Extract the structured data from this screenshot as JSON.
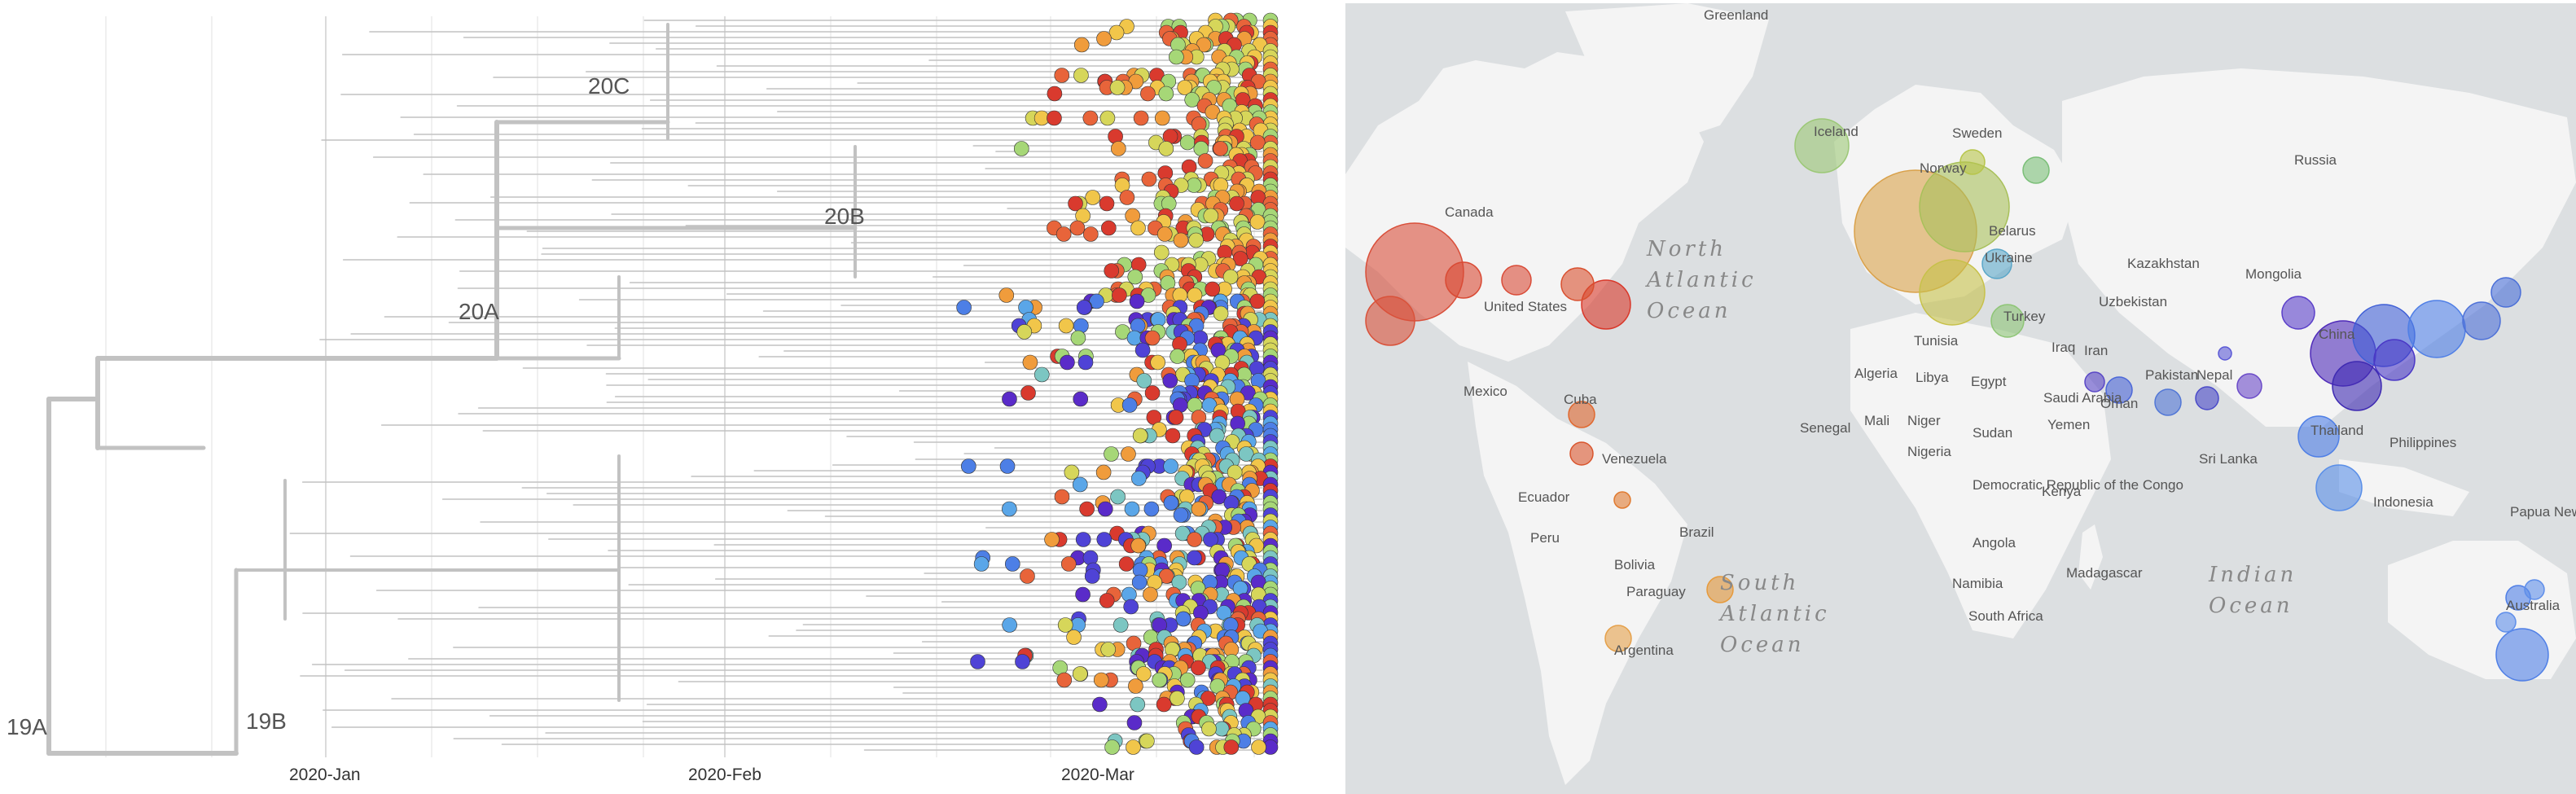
{
  "tree": {
    "clades": [
      "19A",
      "19B",
      "20A",
      "20B",
      "20C"
    ],
    "time_axis": [
      "2020-Jan",
      "2020-Feb",
      "2020-Mar"
    ]
  },
  "map": {
    "places": [
      "Greenland",
      "Iceland",
      "Sweden",
      "Russia",
      "Canada",
      "Norway",
      "Belarus",
      "Ukraine",
      "Kazakhstan",
      "Mongolia",
      "United States",
      "Uzbekistan",
      "Turkey",
      "China",
      "Tunisia",
      "Iraq",
      "Iran",
      "Algeria",
      "Libya",
      "Egypt",
      "Pakistan",
      "Nepal",
      "Mexico",
      "Cuba",
      "Saudi Arabia",
      "Oman",
      "Senegal",
      "Mali",
      "Niger",
      "Yemen",
      "Sudan",
      "Nigeria",
      "Venezuela",
      "Thailand",
      "Philippines",
      "Ecuador",
      "Sri Lanka",
      "Democratic Republic of the Congo",
      "Kenya",
      "Peru",
      "Indonesia",
      "Brazil",
      "Papua New Guinea",
      "Bolivia",
      "Angola",
      "Paraguay",
      "Namibia",
      "Madagascar",
      "Australia",
      "South Africa",
      "Argentina"
    ],
    "oceans": [
      "North Atlantic Ocean",
      "South Atlantic Ocean",
      "Indian Ocean"
    ]
  },
  "colors": {
    "branch": "#c2c2c2",
    "background_map": "#dcdfe1",
    "land": "#f4f4f4"
  }
}
